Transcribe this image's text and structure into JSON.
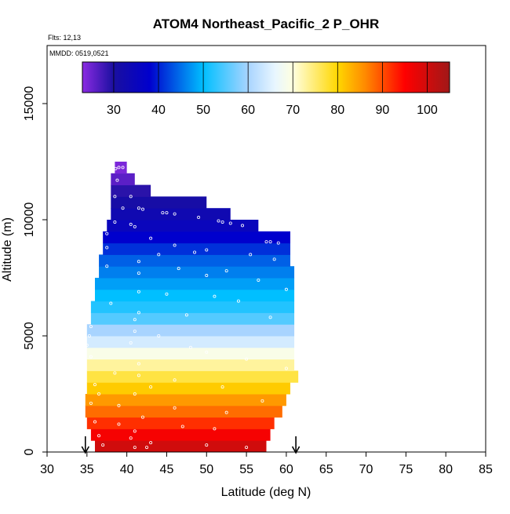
{
  "chart_data": {
    "type": "heatmap",
    "title": "ATOM4 Northeast_Pacific_2 P_OHR",
    "annotations": {
      "flights": "Flts: 12,13",
      "dates": "MMDD: 0519,0521"
    },
    "xlabel": "Latitude (deg N)",
    "ylabel": "Altitude (m)",
    "xlim": [
      30,
      85
    ],
    "ylim": [
      0,
      17500
    ],
    "xticks": [
      30,
      35,
      40,
      45,
      50,
      55,
      60,
      65,
      70,
      75,
      80,
      85
    ],
    "yticks": [
      0,
      5000,
      10000,
      15000
    ],
    "colorbar": {
      "range": [
        23,
        105
      ],
      "ticks": [
        30,
        40,
        50,
        60,
        70,
        80,
        90,
        100
      ],
      "lines": [
        30,
        40,
        50,
        60,
        70,
        80,
        90,
        100
      ],
      "stops": [
        {
          "v": 23,
          "c": "#8b2be2"
        },
        {
          "v": 30,
          "c": "#1a0fa0"
        },
        {
          "v": 38,
          "c": "#0000cd"
        },
        {
          "v": 50,
          "c": "#00bfff"
        },
        {
          "v": 60,
          "c": "#a8d4ff"
        },
        {
          "v": 66,
          "c": "#e8f6ff"
        },
        {
          "v": 70,
          "c": "#ffffe0"
        },
        {
          "v": 80,
          "c": "#ffd700"
        },
        {
          "v": 86,
          "c": "#ff8c00"
        },
        {
          "v": 95,
          "c": "#ff0000"
        },
        {
          "v": 105,
          "c": "#a01818"
        }
      ]
    },
    "flight_markers_lat": [
      34.8,
      61.2
    ],
    "bands": [
      {
        "alt": [
          0,
          500
        ],
        "lat": [
          36.0,
          57.5
        ],
        "v": 100
      },
      {
        "alt": [
          500,
          1000
        ],
        "lat": [
          35.5,
          58.0
        ],
        "v": 96
      },
      {
        "alt": [
          1000,
          1500
        ],
        "lat": [
          35.0,
          58.5
        ],
        "v": 92
      },
      {
        "alt": [
          1500,
          2000
        ],
        "lat": [
          34.8,
          59.5
        ],
        "v": 88
      },
      {
        "alt": [
          2000,
          2500
        ],
        "lat": [
          34.8,
          60.0
        ],
        "v": 85
      },
      {
        "alt": [
          2500,
          3000
        ],
        "lat": [
          35.0,
          60.5
        ],
        "v": 81
      },
      {
        "alt": [
          3000,
          3500
        ],
        "lat": [
          35.0,
          61.5
        ],
        "v": 77
      },
      {
        "alt": [
          3500,
          4000
        ],
        "lat": [
          35.0,
          61.0
        ],
        "v": 73
      },
      {
        "alt": [
          4000,
          4500
        ],
        "lat": [
          35.0,
          61.0
        ],
        "v": 69
      },
      {
        "alt": [
          4500,
          5000
        ],
        "lat": [
          35.0,
          61.0
        ],
        "v": 64
      },
      {
        "alt": [
          5000,
          5500
        ],
        "lat": [
          35.0,
          61.0
        ],
        "v": 60
      },
      {
        "alt": [
          5500,
          6000
        ],
        "lat": [
          35.5,
          61.0
        ],
        "v": 55
      },
      {
        "alt": [
          6000,
          6500
        ],
        "lat": [
          35.5,
          61.0
        ],
        "v": 52
      },
      {
        "alt": [
          6500,
          7000
        ],
        "lat": [
          36.0,
          61.0
        ],
        "v": 50
      },
      {
        "alt": [
          7000,
          7500
        ],
        "lat": [
          36.0,
          61.0
        ],
        "v": 48
      },
      {
        "alt": [
          7500,
          8000
        ],
        "lat": [
          36.5,
          61.0
        ],
        "v": 46
      },
      {
        "alt": [
          8000,
          8500
        ],
        "lat": [
          36.5,
          60.5
        ],
        "v": 44
      },
      {
        "alt": [
          8500,
          9000
        ],
        "lat": [
          37.0,
          60.5
        ],
        "v": 41
      },
      {
        "alt": [
          9000,
          9500
        ],
        "lat": [
          37.0,
          60.5
        ],
        "v": 38
      },
      {
        "alt": [
          9500,
          10000
        ],
        "lat": [
          37.5,
          56.5
        ],
        "v": 35
      },
      {
        "alt": [
          10000,
          10500
        ],
        "lat": [
          38.0,
          53.0
        ],
        "v": 33
      },
      {
        "alt": [
          10500,
          11000
        ],
        "lat": [
          38.0,
          50.0
        ],
        "v": 31
      },
      {
        "alt": [
          11000,
          11500
        ],
        "lat": [
          38.0,
          43.0
        ],
        "v": 29
      },
      {
        "alt": [
          11500,
          12000
        ],
        "lat": [
          38.0,
          41.0
        ],
        "v": 26
      },
      {
        "alt": [
          12000,
          12500
        ],
        "lat": [
          38.5,
          40.0
        ],
        "v": 24
      }
    ],
    "points": [
      [
        38.6,
        12200
      ],
      [
        39.0,
        12250
      ],
      [
        39.5,
        12250
      ],
      [
        38.8,
        11700
      ],
      [
        38.5,
        11000
      ],
      [
        40.5,
        11000
      ],
      [
        39.5,
        10500
      ],
      [
        41.5,
        10500
      ],
      [
        42.0,
        10450
      ],
      [
        44.5,
        10300
      ],
      [
        45.0,
        10300
      ],
      [
        46.0,
        10250
      ],
      [
        38.5,
        9900
      ],
      [
        40.5,
        9800
      ],
      [
        41.0,
        9700
      ],
      [
        49.0,
        10100
      ],
      [
        51.5,
        9950
      ],
      [
        52.0,
        9900
      ],
      [
        53.0,
        9850
      ],
      [
        54.5,
        9750
      ],
      [
        57.5,
        9050
      ],
      [
        58.0,
        9050
      ],
      [
        59.0,
        9000
      ],
      [
        37.5,
        9400
      ],
      [
        43.0,
        9200
      ],
      [
        46.0,
        8900
      ],
      [
        50.0,
        8700
      ],
      [
        37.5,
        8800
      ],
      [
        44.0,
        8500
      ],
      [
        48.5,
        8600
      ],
      [
        55.5,
        8500
      ],
      [
        58.5,
        8300
      ],
      [
        41.5,
        8200
      ],
      [
        46.5,
        7900
      ],
      [
        52.5,
        7800
      ],
      [
        37.5,
        8000
      ],
      [
        41.5,
        7700
      ],
      [
        50.0,
        7600
      ],
      [
        56.5,
        7400
      ],
      [
        60.0,
        7000
      ],
      [
        41.5,
        6900
      ],
      [
        45.0,
        6800
      ],
      [
        51.0,
        6700
      ],
      [
        54.0,
        6500
      ],
      [
        38.0,
        6400
      ],
      [
        41.5,
        6000
      ],
      [
        47.5,
        5900
      ],
      [
        58.0,
        5800
      ],
      [
        41.0,
        5700
      ],
      [
        35.5,
        5400
      ],
      [
        35.3,
        5000
      ],
      [
        35.0,
        4600
      ],
      [
        41.0,
        5200
      ],
      [
        44.0,
        5000
      ],
      [
        40.5,
        4700
      ],
      [
        48.0,
        4500
      ],
      [
        50.0,
        4300
      ],
      [
        35.5,
        4100
      ],
      [
        55.0,
        4000
      ],
      [
        41.5,
        3800
      ],
      [
        60.0,
        3600
      ],
      [
        38.5,
        3400
      ],
      [
        41.5,
        3300
      ],
      [
        46.0,
        3100
      ],
      [
        36.0,
        2900
      ],
      [
        43.0,
        2800
      ],
      [
        52.0,
        2800
      ],
      [
        36.5,
        2500
      ],
      [
        41.0,
        2500
      ],
      [
        57.0,
        2200
      ],
      [
        35.5,
        2100
      ],
      [
        39.0,
        2000
      ],
      [
        46.0,
        1900
      ],
      [
        52.5,
        1700
      ],
      [
        42.0,
        1500
      ],
      [
        36.0,
        1300
      ],
      [
        39.0,
        1200
      ],
      [
        47.0,
        1100
      ],
      [
        51.0,
        1000
      ],
      [
        41.0,
        900
      ],
      [
        36.5,
        700
      ],
      [
        40.5,
        600
      ],
      [
        43.0,
        400
      ],
      [
        37.0,
        300
      ],
      [
        41.0,
        200
      ],
      [
        42.5,
        200
      ],
      [
        50.0,
        300
      ],
      [
        55.0,
        200
      ]
    ]
  }
}
